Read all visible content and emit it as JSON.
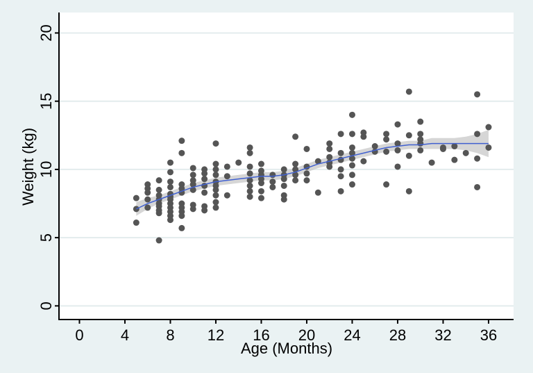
{
  "chart_data": {
    "type": "scatter",
    "xlabel": "Age (Months)",
    "ylabel": "Weight (kg)",
    "xlim": [
      -1.8,
      38.2
    ],
    "ylim": [
      -1,
      21.5
    ],
    "xticks": [
      0,
      4,
      8,
      12,
      16,
      20,
      24,
      28,
      32,
      36
    ],
    "yticks": [
      0,
      5,
      10,
      15,
      20
    ],
    "grid": true,
    "points": {
      "color": "#555555",
      "x": [
        5,
        5,
        5,
        6,
        6,
        6,
        6,
        6,
        7,
        7,
        7,
        7,
        7,
        7,
        7,
        7,
        7,
        8,
        8,
        8,
        8,
        8,
        8,
        8,
        8,
        8,
        8,
        8,
        8,
        9,
        9,
        9,
        9,
        9,
        9,
        9,
        9,
        9,
        9,
        10,
        10,
        10,
        10,
        10,
        10,
        10,
        11,
        11,
        11,
        11,
        11,
        11,
        11,
        12,
        12,
        12,
        12,
        12,
        12,
        12,
        12,
        12,
        12,
        13,
        13,
        13,
        14,
        15,
        15,
        15,
        15,
        15,
        15,
        15,
        15,
        16,
        16,
        16,
        16,
        16,
        16,
        16,
        17,
        17,
        17,
        18,
        18,
        18,
        18,
        18,
        18,
        19,
        19,
        19,
        19,
        19,
        20,
        20,
        20,
        20,
        21,
        21,
        22,
        22,
        22,
        22,
        22,
        23,
        23,
        23,
        23,
        23,
        23,
        24,
        24,
        24,
        24,
        24,
        24,
        24,
        24,
        25,
        25,
        25,
        26,
        26,
        27,
        27,
        27,
        27,
        28,
        28,
        28,
        28,
        29,
        29,
        29,
        29,
        30,
        30,
        30,
        30,
        30,
        31,
        32,
        32,
        33,
        33,
        34,
        35,
        35,
        35,
        35,
        36,
        36
      ],
      "y": [
        7.9,
        7.1,
        6.1,
        8.9,
        8.6,
        8.3,
        7.8,
        7.2,
        9.2,
        8.5,
        8.1,
        7.8,
        7.5,
        7.3,
        7.0,
        6.8,
        4.8,
        10.5,
        9.8,
        9.1,
        8.7,
        8.2,
        8.0,
        7.8,
        7.5,
        7.2,
        6.9,
        6.6,
        6.3,
        12.1,
        11.2,
        8.9,
        8.6,
        8.3,
        7.5,
        7.2,
        6.9,
        6.6,
        5.7,
        10.1,
        9.6,
        9.2,
        8.9,
        8.5,
        7.4,
        7.1,
        10.0,
        9.7,
        9.3,
        8.8,
        8.3,
        7.3,
        7.0,
        11.9,
        10.4,
        10.0,
        9.6,
        9.1,
        8.8,
        8.5,
        8.1,
        7.6,
        7.2,
        10.2,
        9.5,
        8.1,
        10.5,
        11.6,
        11.2,
        10.2,
        9.7,
        9.2,
        8.8,
        8.4,
        8.0,
        10.4,
        9.9,
        9.6,
        9.3,
        9.0,
        8.4,
        7.9,
        9.6,
        9.1,
        8.7,
        10.0,
        9.6,
        9.3,
        8.8,
        8.1,
        7.8,
        12.4,
        10.4,
        10.0,
        9.6,
        9.2,
        11.5,
        10.2,
        9.7,
        9.2,
        10.6,
        8.3,
        11.9,
        11.5,
        10.9,
        10.5,
        10.2,
        12.6,
        11.2,
        10.7,
        10.0,
        9.5,
        8.4,
        14.0,
        12.6,
        11.6,
        11.2,
        10.8,
        10.3,
        9.6,
        8.9,
        12.7,
        12.4,
        10.6,
        11.7,
        11.3,
        12.6,
        12.2,
        11.3,
        8.9,
        13.3,
        11.9,
        11.4,
        10.2,
        15.7,
        12.5,
        11.0,
        8.4,
        13.5,
        12.6,
        12.2,
        11.9,
        11.4,
        10.5,
        11.6,
        11.5,
        11.7,
        10.7,
        11.2,
        15.5,
        12.6,
        10.8,
        8.7,
        13.1,
        11.6
      ]
    },
    "fit": {
      "color": "#4060d0",
      "x": [
        5,
        6,
        7,
        8,
        9,
        10,
        11,
        12,
        13,
        14,
        15,
        16,
        17,
        18,
        19,
        20,
        21,
        22,
        23,
        24,
        25,
        26,
        27,
        28,
        29,
        30,
        31,
        32,
        33,
        34,
        35,
        36
      ],
      "y": [
        7.1,
        7.5,
        7.8,
        8.1,
        8.4,
        8.7,
        8.9,
        9.1,
        9.2,
        9.3,
        9.4,
        9.5,
        9.5,
        9.6,
        9.8,
        10.1,
        10.4,
        10.6,
        10.8,
        11.0,
        11.2,
        11.4,
        11.6,
        11.7,
        11.8,
        11.8,
        11.9,
        11.9,
        11.9,
        11.9,
        11.9,
        11.9
      ]
    },
    "ci": {
      "color": "#c8c8c8",
      "x": [
        5,
        6,
        7,
        8,
        9,
        10,
        11,
        12,
        13,
        14,
        15,
        16,
        17,
        18,
        19,
        20,
        21,
        22,
        23,
        24,
        25,
        26,
        27,
        28,
        29,
        30,
        31,
        32,
        33,
        34,
        35,
        36
      ],
      "lower": [
        6.6,
        7.1,
        7.5,
        7.8,
        8.1,
        8.4,
        8.6,
        8.8,
        8.9,
        9.0,
        9.1,
        9.2,
        9.2,
        9.3,
        9.5,
        9.8,
        10.1,
        10.3,
        10.5,
        10.7,
        10.9,
        11.1,
        11.3,
        11.4,
        11.5,
        11.5,
        11.5,
        11.5,
        11.5,
        11.4,
        11.2,
        10.9
      ],
      "upper": [
        7.6,
        7.9,
        8.1,
        8.4,
        8.7,
        9.0,
        9.2,
        9.4,
        9.5,
        9.6,
        9.7,
        9.8,
        9.8,
        9.9,
        10.1,
        10.4,
        10.7,
        10.9,
        11.1,
        11.3,
        11.5,
        11.7,
        11.9,
        12.0,
        12.1,
        12.1,
        12.3,
        12.3,
        12.3,
        12.4,
        12.6,
        12.9
      ]
    }
  }
}
